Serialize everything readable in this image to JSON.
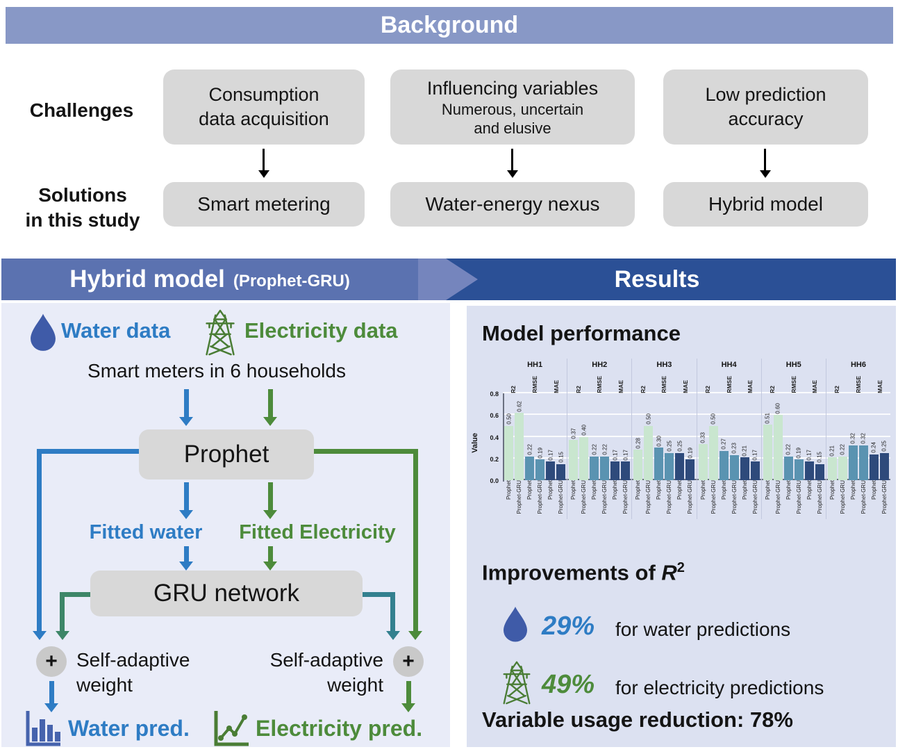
{
  "colors": {
    "header_light": "#8898c6",
    "header_mid": "#5b72b0",
    "header_chevron": "#7585bd",
    "header_dark": "#2b5096",
    "panel_left": "#e9ecf8",
    "panel_right": "#dce1f1",
    "box_grey": "#d8d8d8",
    "water_blue": "#2e7cc4",
    "electricity_green": "#4d8b3b",
    "water_icon": "#3f5ba8",
    "pylon_green": "#4a7d35",
    "pred_icon_blue": "#4663ad",
    "teal_left": "#3d8668",
    "teal_right": "#33808f",
    "plus_bg": "#c9c9c9"
  },
  "background": {
    "title": "Background",
    "challenges_label": "Challenges",
    "solutions_label": [
      "Solutions",
      "in this study"
    ],
    "columns": [
      {
        "challenge_lines": [
          "Consumption",
          "data acquisition"
        ],
        "solution": "Smart metering"
      },
      {
        "challenge_lines": [
          "Influencing variables",
          "Numerous, uncertain",
          "and elusive"
        ],
        "solution": "Water-energy nexus"
      },
      {
        "challenge_lines": [
          "Low prediction",
          "accuracy"
        ],
        "solution": "Hybrid model"
      }
    ]
  },
  "hybrid": {
    "title": "Hybrid model",
    "subtitle": "(Prophet-GRU)",
    "water_data": "Water data",
    "electricity_data": "Electricity data",
    "smart_meters": "Smart meters in 6 households",
    "prophet_box": "Prophet",
    "fitted_water": "Fitted water",
    "fitted_electricity": "Fitted Electricity",
    "gru_box": "GRU network",
    "self_adaptive_left": "Self-adaptive weight",
    "self_adaptive_right": "Self-adaptive weight",
    "plus": "+",
    "water_pred": "Water pred.",
    "electricity_pred": "Electricity pred."
  },
  "results": {
    "title": "Results",
    "model_performance": "Model performance",
    "improvements": {
      "prefix": "Improvements of ",
      "r": "R",
      "sup": "2"
    },
    "water": {
      "pct": "29%",
      "label": "for water predictions"
    },
    "electricity": {
      "pct": "49%",
      "label": "for electricity predictions"
    },
    "variable_reduction": "Variable usage reduction: 78%"
  },
  "chart_data": {
    "type": "bar",
    "title": "Model performance",
    "xlabel": "",
    "ylabel": "Value",
    "ylim": [
      0,
      0.8
    ],
    "yticks": [
      0.0,
      0.2,
      0.4,
      0.6,
      0.8
    ],
    "grid": true,
    "legend": "none",
    "metrics": [
      "R2",
      "RMSE",
      "MAE"
    ],
    "series": [
      "Prophet",
      "Prophet-GRU"
    ],
    "metric_colors": {
      "R2": "#c9e6cf",
      "RMSE": "#5a93b1",
      "MAE": "#2e4a7b"
    },
    "facets": [
      {
        "name": "HH1",
        "values": {
          "R2": [
            0.5,
            0.62
          ],
          "RMSE": [
            0.22,
            0.19
          ],
          "MAE": [
            0.17,
            0.15
          ]
        }
      },
      {
        "name": "HH2",
        "values": {
          "R2": [
            0.37,
            0.4
          ],
          "RMSE": [
            0.22,
            0.22
          ],
          "MAE": [
            0.17,
            0.17
          ]
        }
      },
      {
        "name": "HH3",
        "values": {
          "R2": [
            0.28,
            0.5
          ],
          "RMSE": [
            0.3,
            0.25
          ],
          "MAE": [
            0.25,
            0.19
          ]
        }
      },
      {
        "name": "HH4",
        "values": {
          "R2": [
            0.33,
            0.5
          ],
          "RMSE": [
            0.27,
            0.23
          ],
          "MAE": [
            0.21,
            0.17
          ]
        }
      },
      {
        "name": "HH5",
        "values": {
          "R2": [
            0.51,
            0.6
          ],
          "RMSE": [
            0.22,
            0.19
          ],
          "MAE": [
            0.17,
            0.15
          ]
        }
      },
      {
        "name": "HH6",
        "values": {
          "R2": [
            0.21,
            0.22
          ],
          "RMSE": [
            0.32,
            0.32
          ],
          "MAE": [
            0.24,
            0.25
          ]
        }
      }
    ]
  }
}
